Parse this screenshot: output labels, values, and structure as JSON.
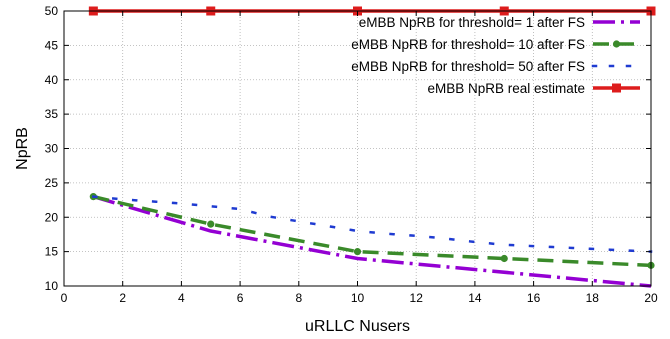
{
  "chart_data": {
    "type": "line",
    "title": "",
    "xlabel": "uRLLC Nusers",
    "ylabel": "NpRB",
    "xlim": [
      0,
      20
    ],
    "ylim": [
      10,
      50
    ],
    "xticks": [
      0,
      2,
      4,
      6,
      8,
      10,
      12,
      14,
      16,
      18,
      20
    ],
    "yticks": [
      10,
      15,
      20,
      25,
      30,
      35,
      40,
      45,
      50
    ],
    "grid": true,
    "legend_position": "top-right",
    "series": [
      {
        "name": "eMBB NpRB for threshold= 1 after FS",
        "color": "#9400d3",
        "line_style": "dash-dot",
        "marker": "none",
        "x": [
          1,
          5,
          10,
          20
        ],
        "y": [
          23,
          18,
          14,
          10
        ]
      },
      {
        "name": "eMBB NpRB for threshold= 10 after FS",
        "color": "#3a8a2a",
        "line_style": "dashed",
        "marker": "circle",
        "x": [
          1,
          5,
          10,
          15,
          20
        ],
        "y": [
          23,
          19,
          15,
          14,
          13
        ]
      },
      {
        "name": "eMBB NpRB for threshold= 50 after FS",
        "color": "#1f3bd1",
        "line_style": "dotted",
        "marker": "none",
        "x": [
          1,
          2,
          3,
          4,
          5,
          6,
          7,
          8,
          9,
          10,
          11,
          12,
          13,
          14,
          15,
          16,
          17,
          18,
          19,
          20
        ],
        "y": [
          23,
          22.6,
          22.3,
          22.0,
          21.6,
          21.2,
          20.1,
          19.4,
          18.7,
          18.0,
          17.6,
          17.3,
          16.9,
          16.4,
          16.0,
          15.8,
          15.6,
          15.4,
          15.2,
          15.0
        ]
      },
      {
        "name": "eMBB NpRB real estimate",
        "color": "#dd1c1c",
        "line_style": "solid",
        "marker": "square",
        "x": [
          1,
          5,
          10,
          15,
          20
        ],
        "y": [
          50,
          50,
          50,
          50,
          50
        ]
      }
    ]
  }
}
